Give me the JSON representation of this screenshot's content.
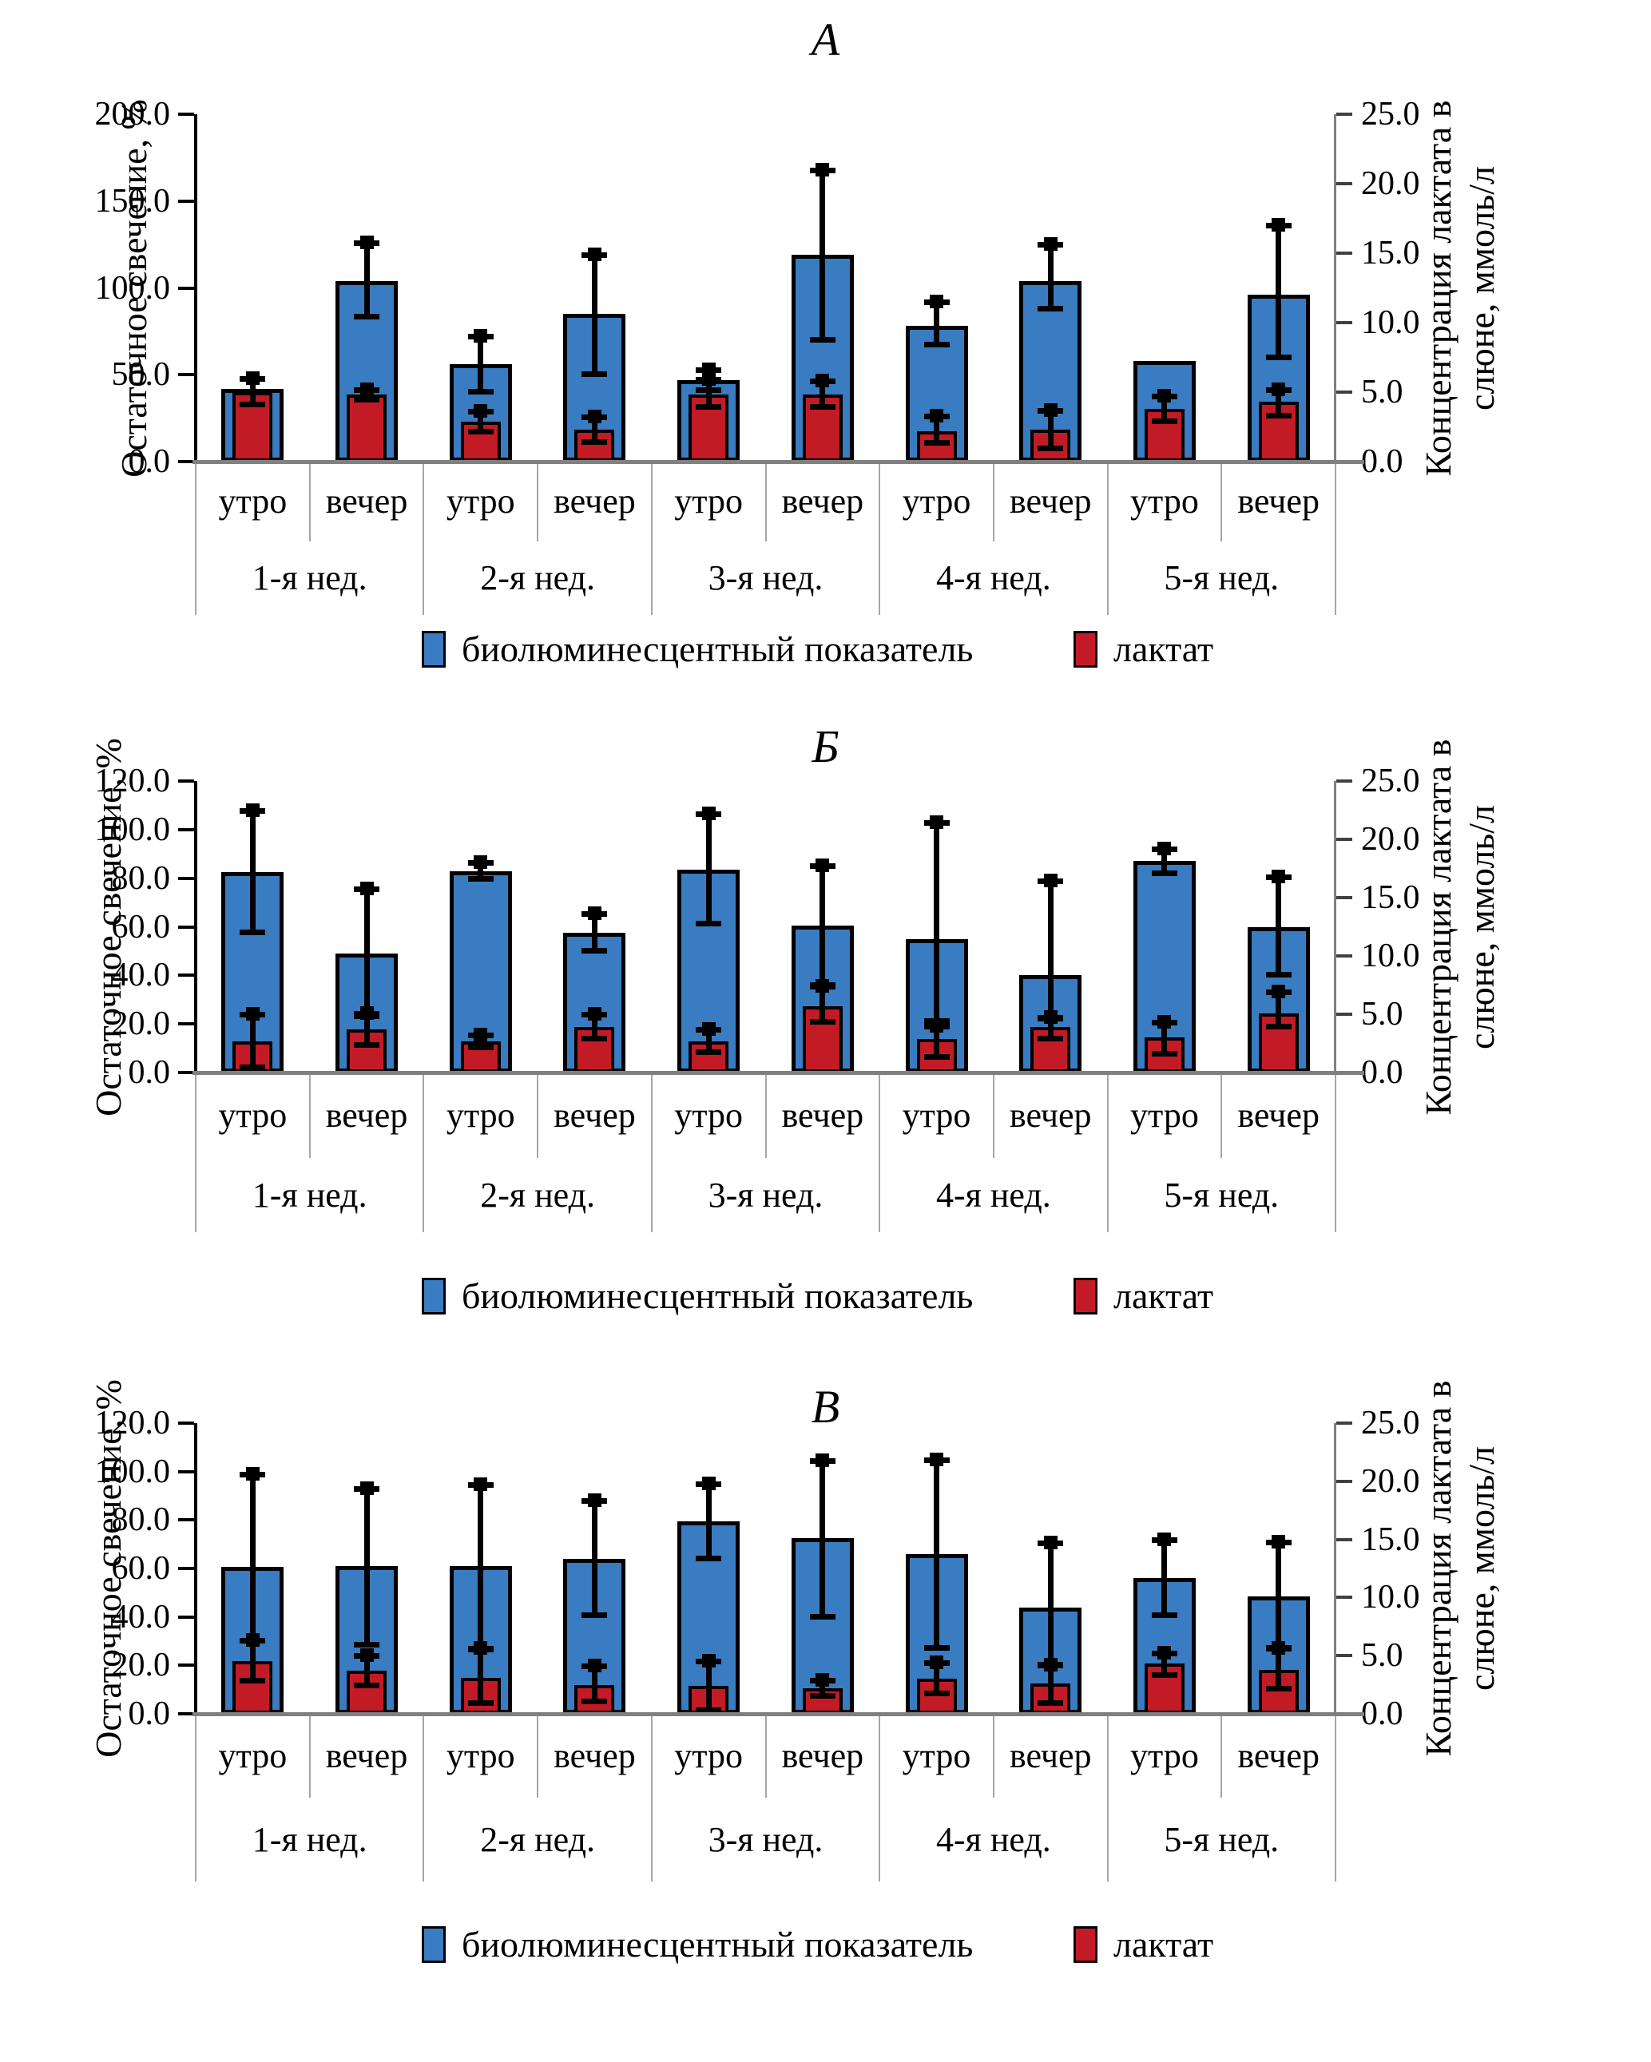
{
  "legend": {
    "items": [
      {
        "label": "биолюминесцентный показатель",
        "color": "#3A7CC1"
      },
      {
        "label": "лактат",
        "color": "#C21B26"
      }
    ]
  },
  "colors": {
    "blue": "#3A7CC1",
    "red": "#C21B26",
    "axis_gray": "#808080",
    "table_line_gray": "#a6a6a6",
    "error_black": "#000000"
  },
  "chart_data": [
    {
      "type": "bar",
      "title": "А",
      "ylabel_left": "Остаточное свечение, %",
      "ylabel_right": "Концентрация лактата в слюне, ммоль/л",
      "ylabel_right_lines": [
        "Концентрация лактата в",
        "слюне, ммоль/л"
      ],
      "ylim_left": [
        0,
        200
      ],
      "ylim_right": [
        0,
        25
      ],
      "left_ticks": [
        "200.0",
        "150.0",
        "100.0",
        "50.0",
        "0.0"
      ],
      "right_ticks": [
        "25.0",
        "20.0",
        "15.0",
        "10.0",
        "5.0",
        "0.0"
      ],
      "weeks": [
        "1-я нед.",
        "2-я нед.",
        "3-я нед.",
        "4-я нед.",
        "5-я нед."
      ],
      "times": [
        "утро",
        "вечер",
        "утро",
        "вечер",
        "утро",
        "вечер",
        "утро",
        "вечер",
        "утро",
        "вечер"
      ],
      "legend_position": "bottom",
      "grid": false,
      "series": [
        {
          "name": "биолюминесцентный показатель",
          "axis": "left",
          "unit": "%",
          "values": [
            42,
            104,
            56,
            85,
            47,
            119,
            78,
            104,
            58,
            96
          ],
          "errors": [
            null,
            [
              83,
              126
            ],
            [
              40,
              72
            ],
            [
              50,
              119
            ],
            [
              41,
              53
            ],
            [
              70,
              168
            ],
            [
              67,
              92
            ],
            [
              88,
              125
            ],
            null,
            [
              60,
              136
            ]
          ]
        },
        {
          "name": "лактат",
          "axis": "right",
          "unit": "ммоль/л",
          "values": [
            5.0,
            4.8,
            2.9,
            2.3,
            4.8,
            4.8,
            2.2,
            2.3,
            3.8,
            4.3
          ],
          "errors": [
            [
              4.1,
              6.0
            ],
            [
              4.4,
              5.2
            ],
            [
              2.1,
              3.6
            ],
            [
              1.4,
              3.2
            ],
            [
              3.9,
              5.9
            ],
            [
              3.9,
              5.8
            ],
            [
              1.3,
              3.3
            ],
            [
              0.9,
              3.7
            ],
            [
              2.9,
              4.7
            ],
            [
              3.3,
              5.2
            ]
          ]
        }
      ]
    },
    {
      "type": "bar",
      "title": "Б",
      "ylabel_left": "Остаточное свечение, %",
      "ylabel_right": "Концентрация лактата в слюне, ммоль/л",
      "ylabel_right_lines": [
        "Концентрация лактата в",
        "слюне, ммоль/л"
      ],
      "ylim_left": [
        0,
        120
      ],
      "ylim_right": [
        0,
        25
      ],
      "left_ticks": [
        "120.0",
        "100.0",
        "80.0",
        "60.0",
        "40.0",
        "20.0",
        "0.0"
      ],
      "right_ticks": [
        "25.0",
        "20.0",
        "15.0",
        "10.0",
        "5.0",
        "0.0"
      ],
      "weeks": [
        "1-я нед.",
        "2-я нед.",
        "3-я нед.",
        "4-я нед.",
        "5-я нед."
      ],
      "times": [
        "утро",
        "вечер",
        "утро",
        "вечер",
        "утро",
        "вечер",
        "утро",
        "вечер",
        "утро",
        "вечер"
      ],
      "legend_position": "bottom",
      "grid": false,
      "series": [
        {
          "name": "биолюминесцентный показатель",
          "axis": "left",
          "unit": "%",
          "values": [
            82.5,
            49,
            83,
            57.5,
            83.5,
            60.5,
            55,
            40,
            87,
            60
          ],
          "errors": [
            [
              57.5,
              108
            ],
            [
              23,
              75.5
            ],
            [
              79.5,
              86.5
            ],
            [
              50,
              65.5
            ],
            [
              61,
              106.5
            ],
            [
              36,
              85
            ],
            [
              21,
              103
            ],
            [
              22,
              79
            ],
            [
              82,
              92
            ],
            [
              40,
              80.5
            ]
          ]
        },
        {
          "name": "лактат",
          "axis": "right",
          "unit": "ммоль/л",
          "values": [
            2.7,
            3.7,
            2.7,
            3.9,
            2.7,
            5.7,
            2.9,
            3.9,
            3.0,
            5.1
          ],
          "errors": [
            [
              0.4,
              5.0
            ],
            [
              2.3,
              5.1
            ],
            [
              2.1,
              3.2
            ],
            [
              2.9,
              5.0
            ],
            [
              1.7,
              3.7
            ],
            [
              4.3,
              7.4
            ],
            [
              1.3,
              4.0
            ],
            [
              2.9,
              4.7
            ],
            [
              1.6,
              4.3
            ],
            [
              3.9,
              6.9
            ]
          ]
        }
      ]
    },
    {
      "type": "bar",
      "title": "В",
      "ylabel_left": "Остаточное свечение, %",
      "ylabel_right": "Концентрация лактата в слюне, ммоль/л",
      "ylabel_right_lines": [
        "Концентрация лактата в",
        "слюне, ммоль/л"
      ],
      "ylim_left": [
        0,
        120
      ],
      "ylim_right": [
        0,
        25
      ],
      "left_ticks": [
        "120.0",
        "100.0",
        "80.0",
        "60.0",
        "40.0",
        "20.0",
        "0.0"
      ],
      "right_ticks": [
        "25.0",
        "20.0",
        "15.0",
        "10.0",
        "5.0",
        "0.0"
      ],
      "weeks": [
        "1-я нед.",
        "2-я нед.",
        "3-я нед.",
        "4-я нед.",
        "5-я нед."
      ],
      "times": [
        "утро",
        "вечер",
        "утро",
        "вечер",
        "утро",
        "вечер",
        "утро",
        "вечер",
        "утро",
        "вечер"
      ],
      "legend_position": "bottom",
      "grid": false,
      "series": [
        {
          "name": "биолюминесцентный показатель",
          "axis": "left",
          "unit": "%",
          "values": [
            60.5,
            61,
            61,
            64,
            79.5,
            72.5,
            66,
            44,
            56,
            48.5
          ],
          "errors": [
            [
              13.5,
              99
            ],
            [
              28.5,
              93
            ],
            [
              26.5,
              94.5
            ],
            [
              40.5,
              88
            ],
            [
              63.8,
              94.8
            ],
            [
              40,
              104.5
            ],
            [
              27,
              105
            ],
            [
              20,
              70.5
            ],
            [
              40.5,
              72
            ],
            [
              27,
              71
            ]
          ]
        },
        {
          "name": "лактат",
          "axis": "right",
          "unit": "ммоль/л",
          "values": [
            4.5,
            3.7,
            3.1,
            2.5,
            2.4,
            2.2,
            3.0,
            2.6,
            4.3,
            3.8
          ],
          "errors": [
            [
              2.8,
              6.3
            ],
            [
              2.4,
              5.0
            ],
            [
              0.9,
              5.6
            ],
            [
              1.0,
              4.1
            ],
            [
              0.3,
              4.5
            ],
            [
              1.5,
              2.9
            ],
            [
              1.7,
              4.4
            ],
            [
              0.9,
              4.2
            ],
            [
              3.3,
              5.2
            ],
            [
              2.1,
              5.6
            ]
          ]
        }
      ]
    }
  ]
}
